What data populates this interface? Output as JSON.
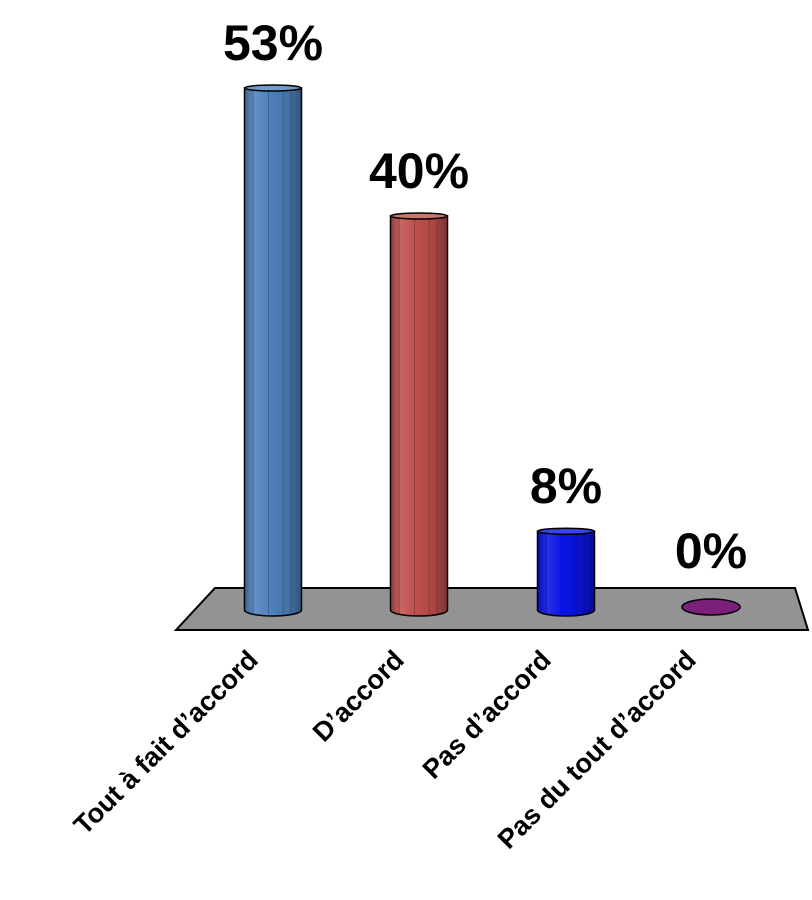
{
  "chart_data": {
    "type": "bar",
    "style": "3d-cylinder",
    "categories": [
      "Tout à fait d’accord",
      "D’accord",
      "Pas d’accord",
      "Pas du tout d’accord"
    ],
    "values": [
      53,
      40,
      8,
      0
    ],
    "value_labels": [
      "53%",
      "40%",
      "8%",
      "0%"
    ],
    "colors": [
      "#4f81bd",
      "#c0504d",
      "#0a14e6",
      "#7a1f7a"
    ],
    "floor_color": "#939393",
    "ylim": [
      0,
      53
    ],
    "grid": false,
    "legend": "none",
    "title": "",
    "xlabel": "",
    "ylabel": ""
  }
}
